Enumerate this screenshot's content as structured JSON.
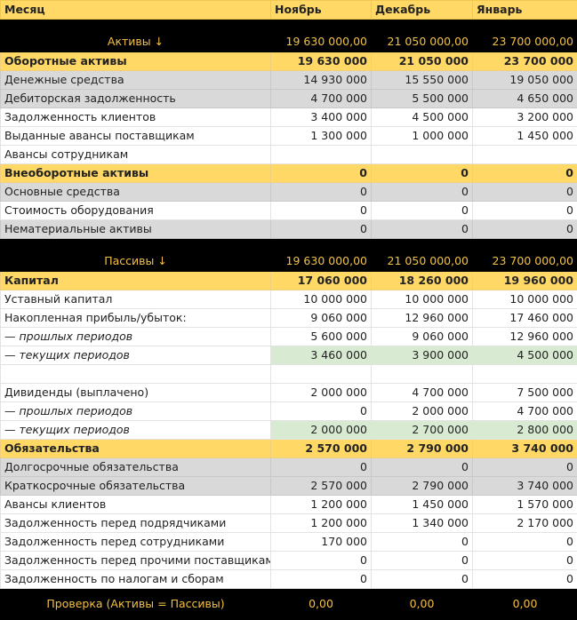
{
  "header": [
    "Месяц",
    "Ноябрь",
    "Декабрь",
    "Январь"
  ],
  "assets": {
    "title": "Активы ↓",
    "totals": [
      "19 630 000,00",
      "21 050 000,00",
      "23 700 000,00"
    ],
    "rows": [
      [
        "Оборотные активы",
        "19 630 000",
        "21 050 000",
        "23 700 000"
      ],
      [
        "Денежные средства",
        "14 930 000",
        "15 550 000",
        "19 050 000"
      ],
      [
        "Дебиторская задолженность",
        "4 700 000",
        "5 500 000",
        "4 650 000"
      ],
      [
        "Задолженность клиентов",
        "3 400 000",
        "4 500 000",
        "3 200 000"
      ],
      [
        "Выданные авансы поставщикам",
        "1 300 000",
        "1 000 000",
        "1 450 000"
      ],
      [
        "Авансы сотрудникам"
      ],
      [
        "Внеоборотные активы",
        "0",
        "0",
        "0"
      ],
      [
        "Основные средства",
        "0",
        "0",
        "0"
      ],
      [
        "Стоимость оборудования",
        "0",
        "0",
        "0"
      ],
      [
        "Нематериальные активы",
        "0",
        "0",
        "0"
      ]
    ]
  },
  "liabilities": {
    "title": "Пассивы ↓",
    "totals": [
      "19 630 000,00",
      "21 050 000,00",
      "23 700 000,00"
    ],
    "rows": [
      [
        "Капитал",
        "17 060 000",
        "18 260 000",
        "19 960 000"
      ],
      [
        "Уставный капитал",
        "10 000 000",
        "10 000 000",
        "10 000 000"
      ],
      [
        "Накопленная прибыль/убыток:",
        "9 060 000",
        "12 960 000",
        "17 460 000"
      ],
      [
        "— прошлых периодов",
        "5 600 000",
        "9 060 000",
        "12 960 000"
      ],
      [
        "— текущих периодов",
        "3 460 000",
        "3 900 000",
        "4 500 000"
      ],
      [],
      [
        "Дивиденды (выплачено)",
        "2 000 000",
        "4 700 000",
        "7 500 000"
      ],
      [
        "— прошлых периодов",
        "0",
        "2 000 000",
        "4 700 000"
      ],
      [
        "— текущих периодов",
        "2 000 000",
        "2 700 000",
        "2 800 000"
      ],
      [
        "Обязательства",
        "2 570 000",
        "2 790 000",
        "3 740 000"
      ],
      [
        "Долгосрочные обязательства",
        "0",
        "0",
        "0"
      ],
      [
        "Краткосрочные обязательства",
        "2 570 000",
        "2 790 000",
        "3 740 000"
      ],
      [
        "Авансы клиентов",
        "1 200 000",
        "1 450 000",
        "1 570 000"
      ],
      [
        "Задолженность перед подрядчиками",
        "1 200 000",
        "1 340 000",
        "2 170 000"
      ],
      [
        "Задолженность перед сотрудниками",
        "170 000",
        "0",
        "0"
      ],
      [
        "Задолженность перед прочими поставщиками",
        "0",
        "0",
        "0"
      ],
      [
        "Задолженность по налогам и сборам",
        "0",
        "0",
        "0"
      ]
    ]
  },
  "check": {
    "label": "Проверка (Активы = Пассивы)",
    "values": [
      "0,00",
      "0,00",
      "0,00"
    ]
  }
}
